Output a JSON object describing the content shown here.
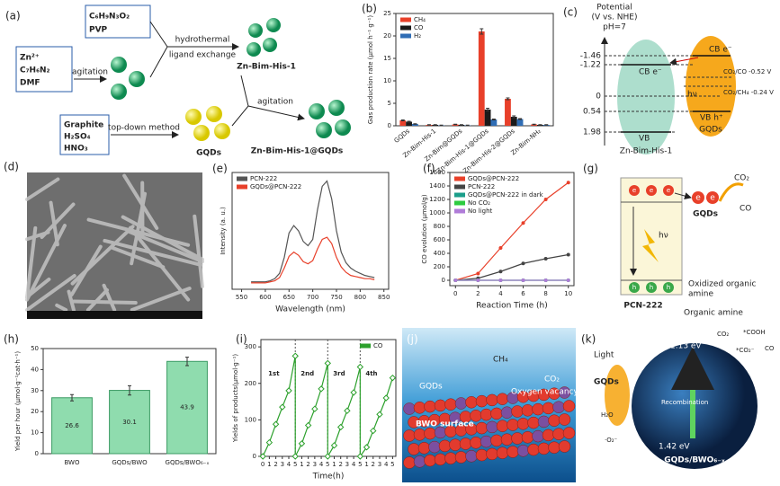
{
  "figure": {
    "a": {
      "label": "(a)",
      "items": [
        "Zn²⁺",
        "C₇H₆N₂",
        "DMF",
        "agitation",
        "C₆H₉N₃O₂",
        "PVP",
        "hydrothermal",
        "ligand exchange",
        "Zn-Bim-His-1",
        "Graphite",
        "H₂SO₄",
        "HNO₃",
        "top-down method",
        "GQDs",
        "agitation",
        "Zn-Bim-His-1@GQDs"
      ]
    },
    "c": {
      "label": "(c)",
      "axis_title": [
        "Potential",
        "(V vs. NHE)",
        "pH=7"
      ],
      "levels": [
        "-1.46",
        "-1.22",
        "0",
        "0.54",
        "1.98"
      ],
      "items": [
        "CB e⁻",
        "CB e⁻",
        "hν",
        "VB",
        "VB h⁺",
        "CO₂/CO -0.52 V",
        "CO₂/CH₄ -0.24 V",
        "Zn-Bim-His-1",
        "GQDs"
      ]
    },
    "d": {
      "label": "(d)"
    },
    "g": {
      "label": "(g)",
      "items": [
        "hν",
        "GQDs",
        "CO₂",
        "CO",
        "Oxidized organic",
        "amine",
        "Organic amine",
        "PCN-222"
      ],
      "carriers": [
        "e",
        "h"
      ]
    },
    "j": {
      "label": "(j)",
      "items": [
        "GQDs",
        "CH₄",
        "CO₂",
        "Oxygen vacancy",
        "BWO surface"
      ]
    },
    "k": {
      "label": "(k)",
      "items": [
        "Light",
        "GQDs",
        "1.13 eV",
        "1.42 eV",
        "Recombination",
        "GQDs/BWO₆₋ₓ",
        "CO₂",
        "*CO₂⁻",
        "*COOH",
        "CO",
        "H₂O",
        "·O₂⁻"
      ]
    }
  },
  "chart_data": [
    {
      "type": "bar",
      "label": "(b)",
      "ylabel": "Gas production rate (μmol h⁻¹ g⁻¹)",
      "categories": [
        "GQDs",
        "Zn-Bim-His-1",
        "Zn-Bim@GQDs",
        "Zn-Bim-His-1@GQDs",
        "Zn-Bim-His-2@GQDs",
        "Zn-Bim-NH₂"
      ],
      "series": [
        {
          "name": "CH₄",
          "color": "#e8402a",
          "values": [
            1.2,
            0.2,
            0.3,
            21.0,
            6.0,
            0.3
          ],
          "errors": [
            0.1,
            0.05,
            0.05,
            0.6,
            0.2,
            0.05
          ]
        },
        {
          "name": "CO",
          "color": "#1a1a1a",
          "values": [
            0.9,
            0.2,
            0.2,
            3.6,
            2.0,
            0.2
          ],
          "errors": [
            0.1,
            0.05,
            0.05,
            0.3,
            0.2,
            0.05
          ]
        },
        {
          "name": "H₂",
          "color": "#2f6db5",
          "values": [
            0.4,
            0.1,
            0.1,
            1.4,
            1.5,
            0.2
          ],
          "errors": [
            0.05,
            0.05,
            0.05,
            0.1,
            0.1,
            0.05
          ]
        }
      ],
      "ylim": [
        0,
        25
      ],
      "yticks": [
        0,
        5,
        10,
        15,
        20,
        25
      ],
      "legend": "upper left"
    },
    {
      "type": "line",
      "label": "(e)",
      "xlabel": "Wavelength (nm)",
      "ylabel": "Intensity (a. u.)",
      "x": [
        570,
        580,
        590,
        600,
        610,
        620,
        630,
        640,
        650,
        660,
        670,
        680,
        690,
        700,
        710,
        720,
        730,
        740,
        750,
        760,
        770,
        780,
        790,
        800,
        810,
        820,
        830
      ],
      "series": [
        {
          "name": "PCN-222",
          "color": "#555555",
          "values": [
            0.02,
            0.02,
            0.02,
            0.02,
            0.03,
            0.05,
            0.1,
            0.25,
            0.48,
            0.55,
            0.5,
            0.4,
            0.36,
            0.42,
            0.7,
            0.92,
            0.97,
            0.8,
            0.5,
            0.3,
            0.2,
            0.15,
            0.12,
            0.1,
            0.08,
            0.07,
            0.06
          ]
        },
        {
          "name": "GQDs@PCN-222",
          "color": "#e8402a",
          "values": [
            0.01,
            0.01,
            0.01,
            0.01,
            0.02,
            0.03,
            0.06,
            0.15,
            0.26,
            0.3,
            0.27,
            0.21,
            0.19,
            0.22,
            0.33,
            0.42,
            0.44,
            0.38,
            0.25,
            0.16,
            0.11,
            0.08,
            0.07,
            0.06,
            0.05,
            0.05,
            0.04
          ]
        }
      ],
      "xlim": [
        530,
        860
      ],
      "xticks": [
        550,
        600,
        650,
        700,
        750,
        800,
        850
      ],
      "ylim": [
        -0.05,
        1.05
      ],
      "legend": "upper left"
    },
    {
      "type": "line",
      "label": "(f)",
      "xlabel": "Reaction Time (h)",
      "ylabel": "CO evolution (μmol/g)",
      "x": [
        0,
        2,
        4,
        6,
        8,
        10
      ],
      "series": [
        {
          "name": "GQDs@PCN-222",
          "color": "#e8402a",
          "marker": "circle",
          "values": [
            0,
            100,
            480,
            850,
            1200,
            1450
          ]
        },
        {
          "name": "PCN-222",
          "color": "#444444",
          "marker": "circle",
          "values": [
            0,
            30,
            130,
            250,
            320,
            380
          ]
        },
        {
          "name": "GQDs@PCN-222 in dark",
          "color": "#1b9e8a",
          "marker": "circle",
          "values": [
            0,
            0,
            0,
            0,
            0,
            0
          ]
        },
        {
          "name": "No CO₂",
          "color": "#2ecc40",
          "marker": "circle",
          "values": [
            0,
            0,
            0,
            0,
            0,
            0
          ]
        },
        {
          "name": "No light",
          "color": "#b07cd8",
          "marker": "circle",
          "values": [
            0,
            0,
            0,
            0,
            0,
            0
          ]
        }
      ],
      "xlim": [
        -0.5,
        10.5
      ],
      "xticks": [
        0,
        2,
        4,
        6,
        8,
        10
      ],
      "ylim": [
        -80,
        1600
      ],
      "yticks": [
        0,
        200,
        400,
        600,
        800,
        1000,
        1200,
        1400,
        1600
      ],
      "legend": "upper left"
    },
    {
      "type": "bar",
      "label": "(h)",
      "ylabel": "Yield per hour (μmol·g⁻¹cat·h⁻¹)",
      "categories": [
        "BWO",
        "GQDs/BWO",
        "GQDs/BWO₆₋ₓ"
      ],
      "series": [
        {
          "color": "#8fdcae",
          "values": [
            26.6,
            30.1,
            43.9
          ],
          "errors": [
            1.5,
            2.2,
            2.0
          ]
        }
      ],
      "ylim": [
        0,
        50
      ],
      "yticks": [
        0,
        10,
        20,
        30,
        40,
        50
      ],
      "data_labels": true
    },
    {
      "type": "line",
      "label": "(i)",
      "xlabel": "Time(h)",
      "ylabel": "Yields of products(μmol·g⁻¹)",
      "x": [
        0,
        1,
        2,
        3,
        4,
        5,
        5,
        6,
        7,
        8,
        9,
        10,
        10,
        11,
        12,
        13,
        14,
        15,
        15,
        16,
        17,
        18,
        19,
        20
      ],
      "series": [
        {
          "name": "CO",
          "color": "#2ca02c",
          "marker": "diamond",
          "values": [
            0,
            38,
            88,
            135,
            180,
            275,
            0,
            35,
            85,
            130,
            185,
            255,
            0,
            30,
            80,
            125,
            175,
            245,
            0,
            25,
            70,
            115,
            160,
            215
          ]
        }
      ],
      "xlim": [
        -0.3,
        20.5
      ],
      "xticks": [
        0,
        1,
        2,
        3,
        4,
        5,
        {
          "value": 6,
          "label": "1"
        },
        {
          "value": 7,
          "label": "2"
        },
        {
          "value": 8,
          "label": "3"
        },
        {
          "value": 9,
          "label": "4"
        },
        {
          "value": 10,
          "label": "5"
        },
        {
          "value": 11,
          "label": "1"
        },
        {
          "value": 12,
          "label": "2"
        },
        {
          "value": 13,
          "label": "3"
        },
        {
          "value": 14,
          "label": "4"
        },
        {
          "value": 15,
          "label": "5"
        },
        {
          "value": 16,
          "label": "1"
        },
        {
          "value": 17,
          "label": "2"
        },
        {
          "value": 18,
          "label": "3"
        },
        {
          "value": 19,
          "label": "4"
        },
        {
          "value": 20,
          "label": "5"
        }
      ],
      "ylim": [
        0,
        320
      ],
      "yticks": [
        0,
        100,
        200,
        300
      ],
      "legend": "upper right",
      "annotations": [
        "1st",
        "2nd",
        "3rd",
        "4th"
      ]
    }
  ]
}
